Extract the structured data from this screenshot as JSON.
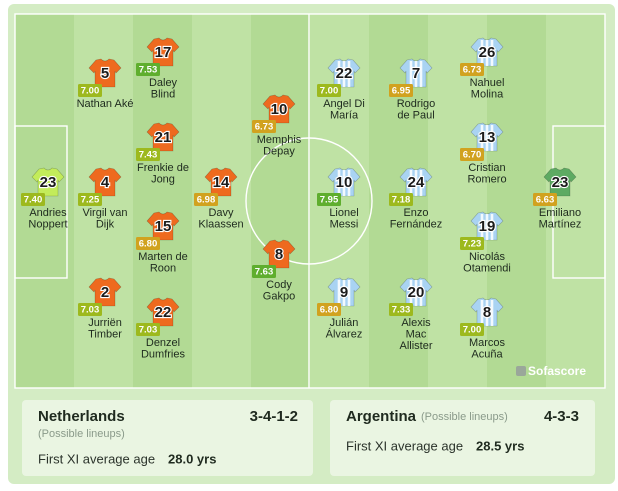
{
  "teams": [
    {
      "name": "Netherlands",
      "formation": "3-4-1-2",
      "note": "(Possible lineups)",
      "age_label": "First XI average age",
      "age": "28.0 yrs",
      "players": [
        {
          "number": "23",
          "rating": "7.40",
          "name": [
            "Andries",
            "Noppert"
          ]
        },
        {
          "number": "5",
          "rating": "7.00",
          "name": [
            "Nathan Aké"
          ]
        },
        {
          "number": "4",
          "rating": "7.25",
          "name": [
            "Virgil van",
            "Dijk"
          ]
        },
        {
          "number": "2",
          "rating": "7.03",
          "name": [
            "Jurriën",
            "Timber"
          ]
        },
        {
          "number": "17",
          "rating": "7.53",
          "name": [
            "Daley",
            "Blind"
          ]
        },
        {
          "number": "21",
          "rating": "7.43",
          "name": [
            "Frenkie de",
            "Jong"
          ]
        },
        {
          "number": "15",
          "rating": "6.80",
          "name": [
            "Marten de",
            "Roon"
          ]
        },
        {
          "number": "22",
          "rating": "7.03",
          "name": [
            "Denzel",
            "Dumfries"
          ]
        },
        {
          "number": "14",
          "rating": "6.98",
          "name": [
            "Davy",
            "Klaassen"
          ]
        },
        {
          "number": "10",
          "rating": "6.73",
          "name": [
            "Memphis",
            "Depay"
          ]
        },
        {
          "number": "8",
          "rating": "7.63",
          "name": [
            "Cody",
            "Gakpo"
          ]
        }
      ]
    },
    {
      "name": "Argentina",
      "formation": "4-3-3",
      "note": "(Possible lineups)",
      "age_label": "First XI average age",
      "age": "28.5 yrs",
      "players": [
        {
          "number": "22",
          "rating": "7.00",
          "name": [
            "Angel Di",
            "María"
          ]
        },
        {
          "number": "10",
          "rating": "7.95",
          "name": [
            "Lionel",
            "Messi"
          ]
        },
        {
          "number": "9",
          "rating": "6.80",
          "name": [
            "Julián",
            "Álvarez"
          ]
        },
        {
          "number": "7",
          "rating": "6.95",
          "name": [
            "Rodrigo",
            "de Paul"
          ]
        },
        {
          "number": "24",
          "rating": "7.18",
          "name": [
            "Enzo",
            "Fernández"
          ]
        },
        {
          "number": "20",
          "rating": "7.33",
          "name": [
            "Alexis",
            "Mac",
            "Allister"
          ]
        },
        {
          "number": "26",
          "rating": "6.73",
          "name": [
            "Nahuel",
            "Molina"
          ]
        },
        {
          "number": "13",
          "rating": "6.70",
          "name": [
            "Cristian",
            "Romero"
          ]
        },
        {
          "number": "19",
          "rating": "7.23",
          "name": [
            "Nicolás",
            "Otamendi"
          ]
        },
        {
          "number": "8",
          "rating": "7.00",
          "name": [
            "Marcos",
            "Acuña"
          ]
        },
        {
          "number": "23",
          "rating": "6.63",
          "name": [
            "Emiliano",
            "Martínez"
          ]
        }
      ]
    }
  ],
  "watermark": "Sofascore"
}
